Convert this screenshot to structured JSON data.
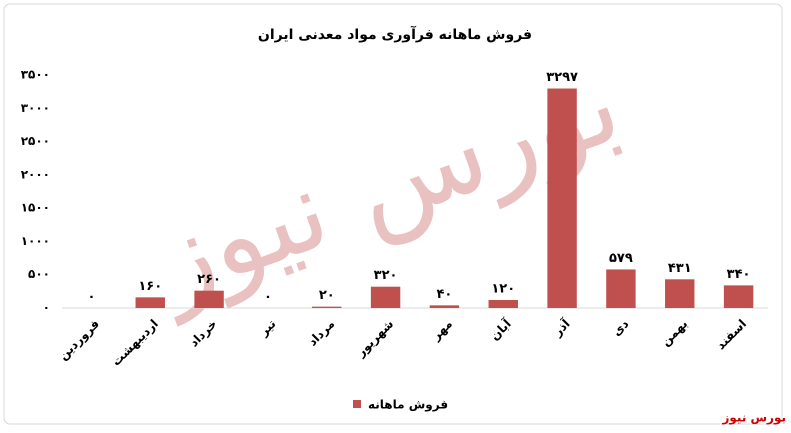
{
  "chart_data": {
    "type": "bar",
    "title": "فروش ماهانه فرآوری مواد معدنی ایران",
    "categories": [
      "فروردین",
      "اردیبهشت",
      "خرداد",
      "تیر",
      "مرداد",
      "شهریور",
      "مهر",
      "آبان",
      "آذر",
      "دی",
      "بهمن",
      "اسفند"
    ],
    "series": [
      {
        "name": "فروش ماهانه",
        "color": "#c0504d",
        "values": [
          0,
          160,
          260,
          0,
          20,
          320,
          40,
          120,
          3297,
          579,
          431,
          340
        ],
        "value_labels": [
          "۰",
          "۱۶۰",
          "۲۶۰",
          "۰",
          "۲۰",
          "۳۲۰",
          "۴۰",
          "۱۲۰",
          "۳۲۹۷",
          "۵۷۹",
          "۴۳۱",
          "۳۴۰"
        ]
      }
    ],
    "ylim": [
      0,
      3500
    ],
    "yticks": [
      {
        "value": 0,
        "label": "۰"
      },
      {
        "value": 500,
        "label": "۵۰۰"
      },
      {
        "value": 1000,
        "label": "۱۰۰۰"
      },
      {
        "value": 1500,
        "label": "۱۵۰۰"
      },
      {
        "value": 2000,
        "label": "۲۰۰۰"
      },
      {
        "value": 2500,
        "label": "۲۵۰۰"
      },
      {
        "value": 3000,
        "label": "۳۰۰۰"
      },
      {
        "value": 3500,
        "label": "۳۵۰۰"
      }
    ],
    "grid": false,
    "legend": "bottom",
    "watermark": "بورس نیوز",
    "source": "بورس نیوز"
  }
}
